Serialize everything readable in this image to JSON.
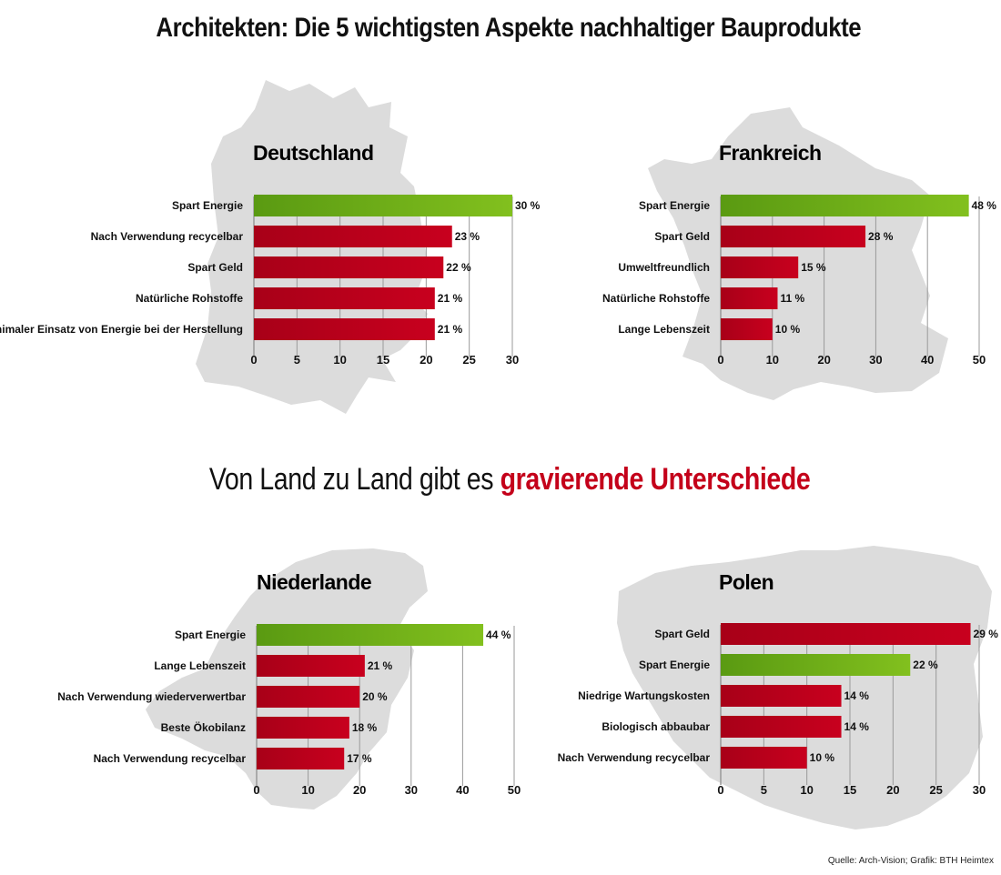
{
  "title": "Architekten: Die 5 wichtigsten Aspekte nachhaltiger Bauprodukte",
  "subtitle": {
    "normal": "Von Land zu Land gibt es ",
    "highlight": "gravierende Unterschiede"
  },
  "source": "Quelle: Arch-Vision; Grafik: BTH Heimtex",
  "colors": {
    "red": "#c8001e",
    "green": "#6aab1a",
    "map": "#dcdcdc",
    "highlight_text": "#c4001a"
  },
  "chart_data": [
    {
      "type": "bar",
      "orientation": "horizontal",
      "title": "Deutschland",
      "categories": [
        "Spart Energie",
        "Nach Verwendung recycelbar",
        "Spart Geld",
        "Natürliche Rohstoffe",
        "Minimaler Einsatz von Energie bei der Herstellung"
      ],
      "values": [
        30,
        23,
        22,
        21,
        21
      ],
      "value_labels": [
        "30 %",
        "23 %",
        "22 %",
        "21 %",
        "21 %"
      ],
      "colors": [
        "green",
        "red",
        "red",
        "red",
        "red"
      ],
      "xlim": [
        0,
        30
      ],
      "ticks": [
        0,
        5,
        10,
        15,
        20,
        25,
        30
      ],
      "grid": true
    },
    {
      "type": "bar",
      "orientation": "horizontal",
      "title": "Frankreich",
      "categories": [
        "Spart Energie",
        "Spart Geld",
        "Umweltfreundlich",
        "Natürliche Rohstoffe",
        "Lange Lebenszeit"
      ],
      "values": [
        48,
        28,
        15,
        11,
        10
      ],
      "value_labels": [
        "48 %",
        "28 %",
        "15 %",
        "11 %",
        "10 %"
      ],
      "colors": [
        "green",
        "red",
        "red",
        "red",
        "red"
      ],
      "xlim": [
        0,
        50
      ],
      "ticks": [
        0,
        10,
        20,
        30,
        40,
        50
      ],
      "grid": true
    },
    {
      "type": "bar",
      "orientation": "horizontal",
      "title": "Niederlande",
      "categories": [
        "Spart Energie",
        "Lange Lebenszeit",
        "Nach Verwendung wiederverwertbar",
        "Beste Ökobilanz",
        "Nach Verwendung recycelbar"
      ],
      "values": [
        44,
        21,
        20,
        18,
        17
      ],
      "value_labels": [
        "44 %",
        "21 %",
        "20 %",
        "18 %",
        "17 %"
      ],
      "colors": [
        "green",
        "red",
        "red",
        "red",
        "red"
      ],
      "xlim": [
        0,
        50
      ],
      "ticks": [
        0,
        10,
        20,
        30,
        40,
        50
      ],
      "grid": true
    },
    {
      "type": "bar",
      "orientation": "horizontal",
      "title": "Polen",
      "categories": [
        "Spart Geld",
        "Spart Energie",
        "Niedrige Wartungskosten",
        "Biologisch abbaubar",
        "Nach Verwendung recycelbar"
      ],
      "values": [
        29,
        22,
        14,
        14,
        10
      ],
      "value_labels": [
        "29 %",
        "22 %",
        "14 %",
        "14 %",
        "10 %"
      ],
      "colors": [
        "red",
        "green",
        "red",
        "red",
        "red"
      ],
      "xlim": [
        0,
        30
      ],
      "ticks": [
        0,
        5,
        10,
        15,
        20,
        25,
        30
      ],
      "grid": true
    }
  ]
}
